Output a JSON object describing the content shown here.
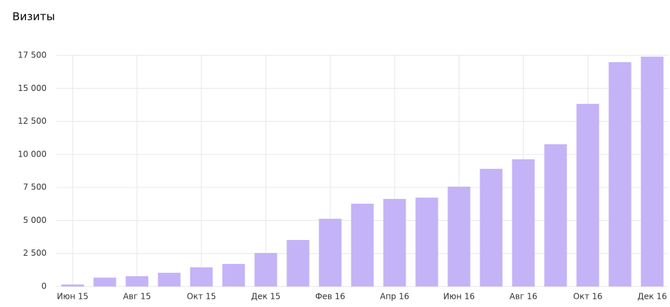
{
  "chart_data": {
    "type": "bar",
    "title": "Визиты",
    "categories": [
      "Июн 15",
      null,
      "Авг 15",
      null,
      "Окт 15",
      null,
      "Дек 15",
      null,
      "Фев 16",
      null,
      "Апр 16",
      null,
      "Июн 16",
      null,
      "Авг 16",
      null,
      "Окт 16",
      null,
      "Дек 16"
    ],
    "values": [
      150,
      670,
      780,
      1040,
      1450,
      1710,
      2540,
      3520,
      5130,
      6270,
      6630,
      6730,
      7560,
      8910,
      9630,
      10770,
      13830,
      16990,
      17400
    ],
    "color": "#c4b3f7",
    "ylim": [
      0,
      17500
    ],
    "yticks": [
      0,
      {
        "value": 2500,
        "label": "2 500"
      },
      {
        "value": 5000,
        "label": "5 000"
      },
      {
        "value": 7500,
        "label": "7 500"
      },
      {
        "value": 10000,
        "label": "10 000"
      },
      {
        "value": 12500,
        "label": "12 500"
      },
      {
        "value": 15000,
        "label": "15 000"
      },
      {
        "value": 17500,
        "label": "17 500"
      }
    ],
    "grid": true
  }
}
